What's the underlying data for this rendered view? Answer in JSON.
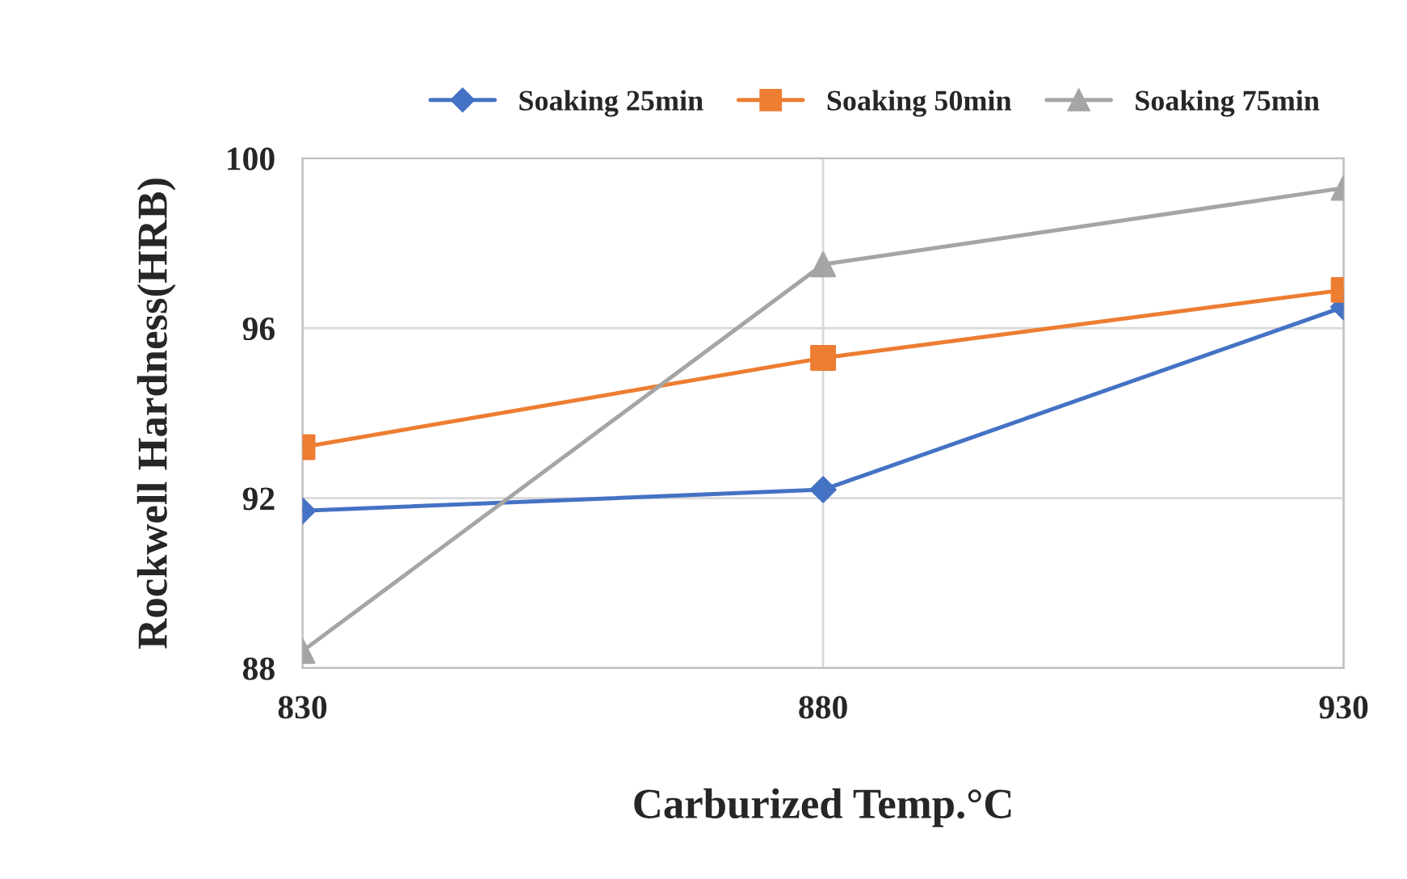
{
  "chart_data": {
    "type": "line",
    "xlabel": "Carburized Temp.°C",
    "ylabel": "Rockwell Hardness(HRB)",
    "x": [
      830,
      880,
      930
    ],
    "xlim": [
      830,
      930
    ],
    "xticks": [
      830,
      880,
      930
    ],
    "ylim": [
      88,
      100
    ],
    "yticks": [
      88,
      92,
      96,
      100
    ],
    "grid": true,
    "legend": "top",
    "series": [
      {
        "name": "Soaking 25min",
        "color": "#4472c4",
        "marker": "diamond",
        "values": [
          91.7,
          92.2,
          96.5
        ]
      },
      {
        "name": "Soaking 50min",
        "color": "#ed7d31",
        "marker": "square",
        "values": [
          93.2,
          95.3,
          96.9
        ]
      },
      {
        "name": "Soaking 75min",
        "color": "#a5a5a5",
        "marker": "triangle",
        "values": [
          88.4,
          97.5,
          99.3
        ]
      }
    ]
  }
}
